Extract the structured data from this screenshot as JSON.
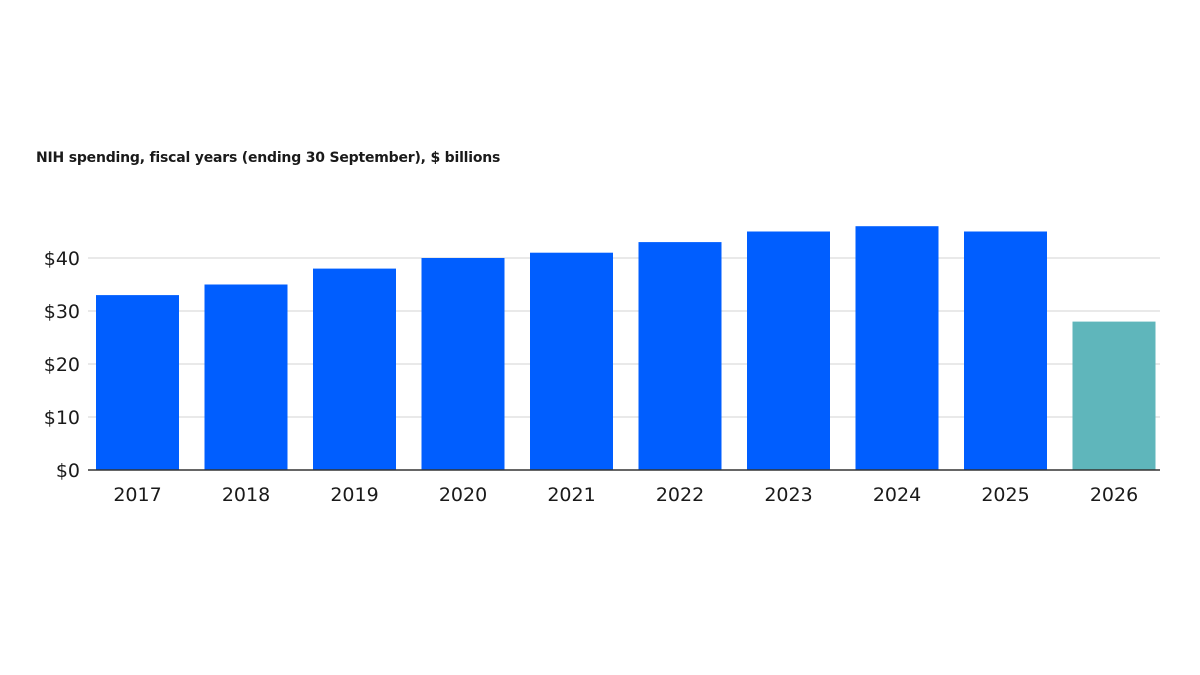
{
  "chart_data": {
    "type": "bar",
    "title": "",
    "subtitle": "NIH spending, fiscal years (ending 30 September), $ billions",
    "xlabel": "",
    "ylabel": "",
    "categories": [
      "2017",
      "2018",
      "2019",
      "2020",
      "2021",
      "2022",
      "2023",
      "2024",
      "2025",
      "2026"
    ],
    "values": [
      33,
      35,
      38,
      40,
      41,
      43,
      45,
      46,
      45,
      28
    ],
    "ylim": [
      0,
      50
    ],
    "yticks": [
      0,
      10,
      20,
      30,
      40
    ],
    "ytick_labels": [
      "$0",
      "$10",
      "$20",
      "$30",
      "$40"
    ],
    "grid": true,
    "colors": {
      "default": "#005eff",
      "highlight": "#5fb6bb",
      "highlight_category": "2026"
    }
  }
}
